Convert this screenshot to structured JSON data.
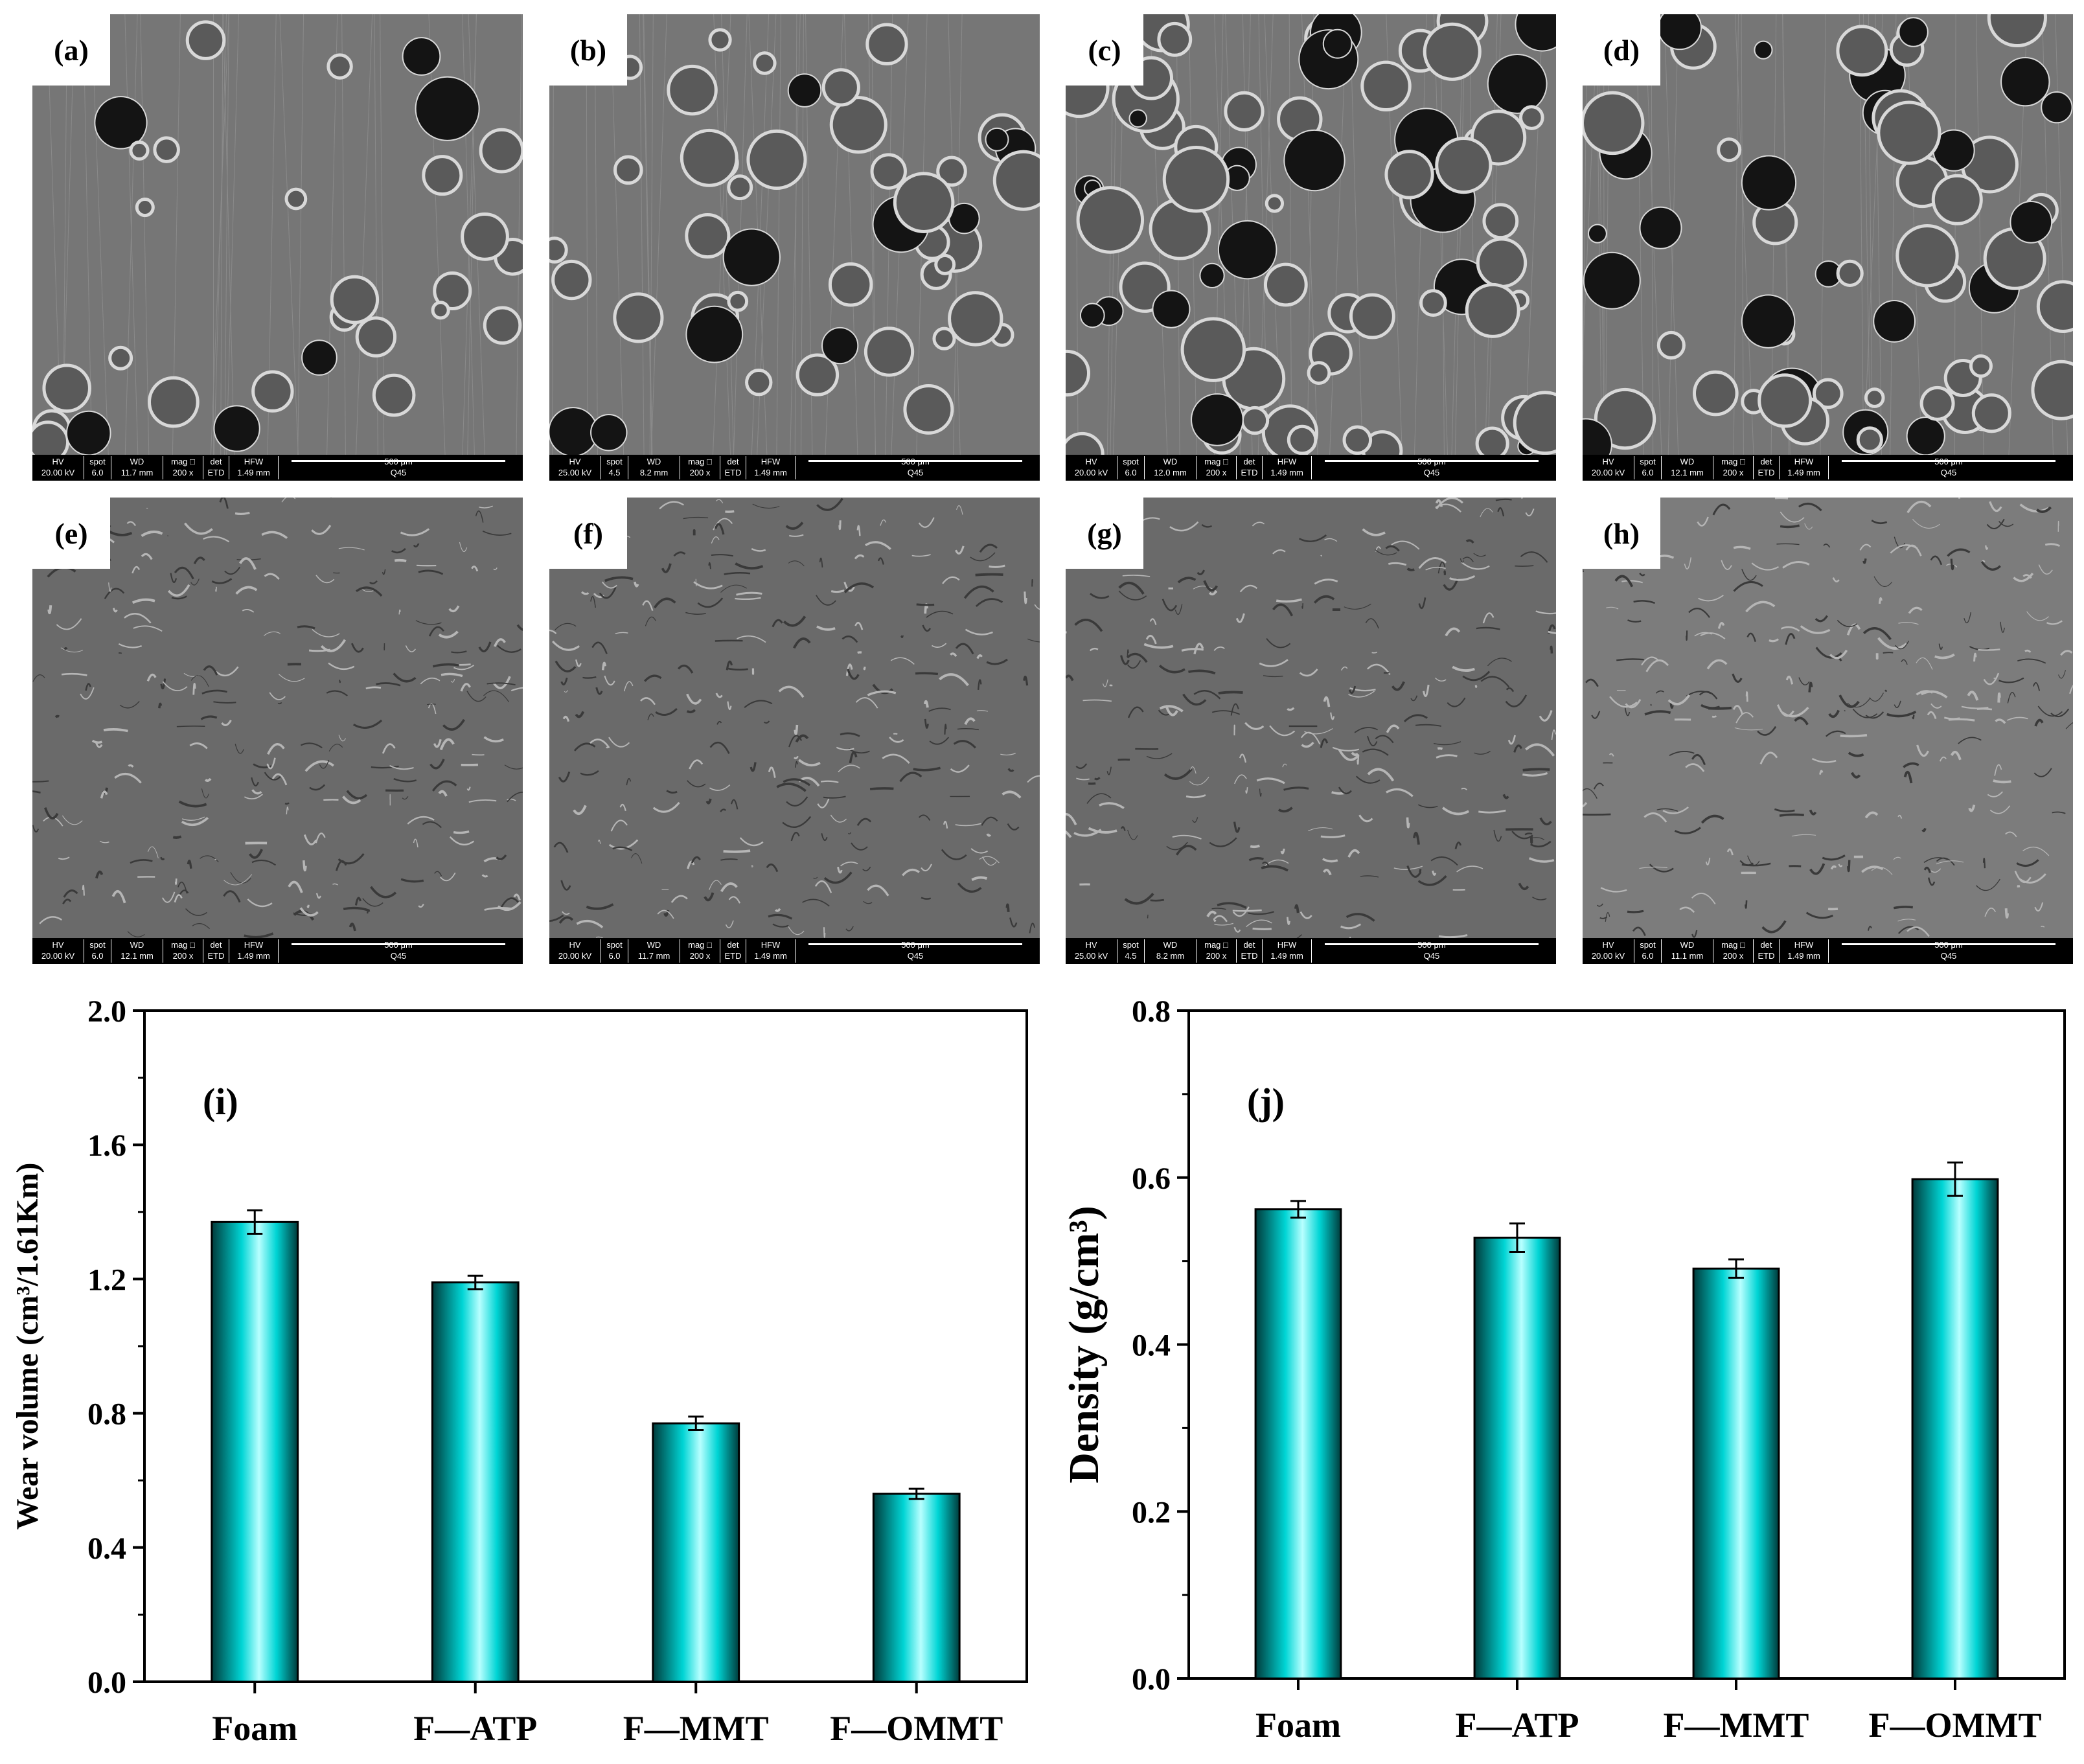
{
  "sem_panels": [
    {
      "label": "(a)",
      "hv": "20.00 kV",
      "spot": "6.0",
      "wd": "11.7 mm",
      "mag": "200 x",
      "det": "ETD",
      "hfw": "1.49 mm",
      "scale": "500 μm",
      "id": "Q45"
    },
    {
      "label": "(b)",
      "hv": "25.00 kV",
      "spot": "4.5",
      "wd": "8.2 mm",
      "mag": "200 x",
      "det": "ETD",
      "hfw": "1.49 mm",
      "scale": "500 μm",
      "id": "Q45"
    },
    {
      "label": "(c)",
      "hv": "20.00 kV",
      "spot": "6.0",
      "wd": "12.0 mm",
      "mag": "200 x",
      "det": "ETD",
      "hfw": "1.49 mm",
      "scale": "500 μm",
      "id": "Q45"
    },
    {
      "label": "(d)",
      "hv": "20.00 kV",
      "spot": "6.0",
      "wd": "12.1 mm",
      "mag": "200 x",
      "det": "ETD",
      "hfw": "1.49 mm",
      "scale": "500 μm",
      "id": "Q45"
    },
    {
      "label": "(e)",
      "hv": "20.00 kV",
      "spot": "6.0",
      "wd": "12.1 mm",
      "mag": "200 x",
      "det": "ETD",
      "hfw": "1.49 mm",
      "scale": "500 μm",
      "id": "Q45"
    },
    {
      "label": "(f)",
      "hv": "20.00 kV",
      "spot": "6.0",
      "wd": "11.7 mm",
      "mag": "200 x",
      "det": "ETD",
      "hfw": "1.49 mm",
      "scale": "500 μm",
      "id": "Q45"
    },
    {
      "label": "(g)",
      "hv": "25.00 kV",
      "spot": "4.5",
      "wd": "8.2 mm",
      "mag": "200 x",
      "det": "ETD",
      "hfw": "1.49 mm",
      "scale": "500 μm",
      "id": "Q45"
    },
    {
      "label": "(h)",
      "hv": "20.00 kV",
      "spot": "6.0",
      "wd": "11.1 mm",
      "mag": "200 x",
      "det": "ETD",
      "hfw": "1.49 mm",
      "scale": "500 μm",
      "id": "Q45"
    }
  ],
  "bar_headers": {
    "hv": "HV",
    "spot": "spot",
    "wd": "WD",
    "mag": "mag □",
    "det": "det",
    "hfw": "HFW"
  },
  "bar_color": "#00d5d5",
  "chart_data": [
    {
      "type": "bar",
      "panel_label": "(i)",
      "categories": [
        "Foam",
        "F—ATP",
        "F—MMT",
        "F—OMMT"
      ],
      "values": [
        1.37,
        1.19,
        0.77,
        0.56
      ],
      "errors": [
        0.035,
        0.02,
        0.02,
        0.015
      ],
      "ylabel": "Wear volume (cm³/1.61Km)",
      "ylim": [
        0.0,
        2.0
      ],
      "yticks": [
        "0.0",
        "0.4",
        "0.8",
        "1.2",
        "1.6",
        "2.0"
      ]
    },
    {
      "type": "bar",
      "panel_label": "(j)",
      "categories": [
        "Foam",
        "F—ATP",
        "F—MMT",
        "F—OMMT"
      ],
      "values": [
        0.562,
        0.528,
        0.491,
        0.598
      ],
      "errors": [
        0.01,
        0.017,
        0.011,
        0.02
      ],
      "ylabel": "Density (g/cm³)",
      "ylim": [
        0.0,
        0.8
      ],
      "yticks": [
        "0.0",
        "0.2",
        "0.4",
        "0.6",
        "0.8"
      ]
    }
  ]
}
